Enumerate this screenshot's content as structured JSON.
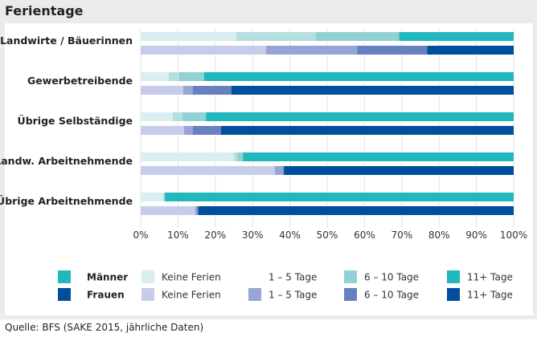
{
  "title": "Ferientage",
  "source": "Quelle: BFS (SAKE 2015, jährliche Daten)",
  "colors": {
    "maenner": [
      "#d8eeef",
      "#b4e0e2",
      "#91d1d4",
      "#21b8bd"
    ],
    "frauen": [
      "#c7cce9",
      "#97a5d6",
      "#6680c2",
      "#004f9f"
    ]
  },
  "legend": {
    "groups": [
      {
        "label": "Männer",
        "color": "#21b8bd"
      },
      {
        "label": "Frauen",
        "color": "#004f9f"
      }
    ],
    "maenner_items": [
      "Keine Ferien",
      "1 – 5 Tage",
      "6 – 10 Tage",
      "11+ Tage"
    ],
    "frauen_items": [
      "Keine Ferien",
      "1 – 5 Tage",
      "6 – 10 Tage",
      "11+ Tage"
    ]
  },
  "chart_data": {
    "type": "bar",
    "orientation": "horizontal-stacked-100",
    "title": "Ferientage",
    "xlabel": "",
    "ylabel": "",
    "xlim": [
      0,
      100
    ],
    "grid": true,
    "legend_position": "bottom",
    "x_ticks": [
      "0%",
      "10%",
      "20%",
      "30%",
      "40%",
      "50%",
      "60%",
      "70%",
      "80%",
      "90%",
      "100%"
    ],
    "categories": [
      "Landwirte / Bäuerinnen",
      "Gewerbetreibende",
      "Übrige Selbständige",
      "Landw. Arbeitnehmende",
      "Übrige Arbeitnehmende"
    ],
    "segments": [
      "Keine Ferien",
      "1 – 5 Tage",
      "6 – 10 Tage",
      "11+ Tage"
    ],
    "series": [
      {
        "name": "Männer",
        "values": [
          [
            25.6,
            21.3,
            22.4,
            30.7
          ],
          [
            7.5,
            2.8,
            6.7,
            83.0
          ],
          [
            8.6,
            2.6,
            6.3,
            82.5
          ],
          [
            25.0,
            0.9,
            1.5,
            72.6
          ],
          [
            6.0,
            0.3,
            0.2,
            93.5
          ]
        ]
      },
      {
        "name": "Frauen",
        "values": [
          [
            33.6,
            24.4,
            18.8,
            23.2
          ],
          [
            11.4,
            2.6,
            10.3,
            75.7
          ],
          [
            11.6,
            2.4,
            7.5,
            78.5
          ],
          [
            36.0,
            2.2,
            0.2,
            61.6
          ],
          [
            14.6,
            0.5,
            0.4,
            84.5
          ]
        ]
      }
    ]
  }
}
